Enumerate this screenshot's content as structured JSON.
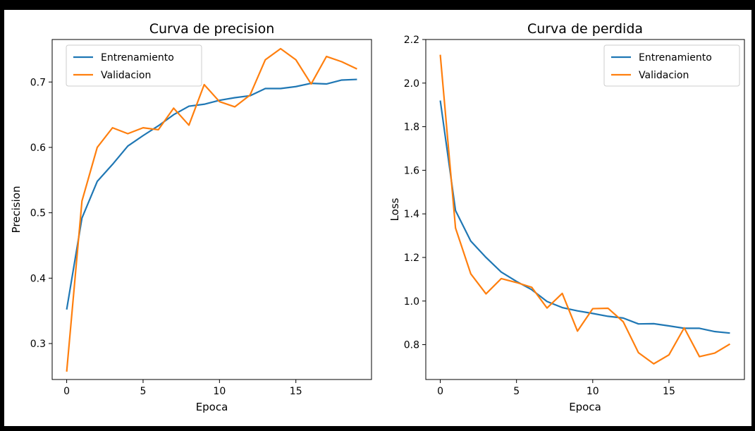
{
  "chart_data": [
    {
      "type": "line",
      "title": "Curva de precision",
      "xlabel": "Epoca",
      "ylabel": "Precision",
      "xlim": [
        -0.95,
        19.95
      ],
      "ylim": [
        0.245,
        0.765
      ],
      "xticks": [
        0,
        5,
        10,
        15
      ],
      "yticks": [
        0.3,
        0.4,
        0.5,
        0.6,
        0.7
      ],
      "legend_position": "top-left",
      "x": [
        0,
        1,
        2,
        3,
        4,
        5,
        6,
        7,
        8,
        9,
        10,
        11,
        12,
        13,
        14,
        15,
        16,
        17,
        18,
        19
      ],
      "series": [
        {
          "name": "Entrenamiento",
          "color": "#1f77b4",
          "values": [
            0.352,
            0.492,
            0.548,
            0.574,
            0.602,
            0.618,
            0.633,
            0.65,
            0.663,
            0.666,
            0.672,
            0.676,
            0.679,
            0.69,
            0.69,
            0.693,
            0.698,
            0.697,
            0.703,
            0.704
          ]
        },
        {
          "name": "Validacion",
          "color": "#ff7f0e",
          "values": [
            0.257,
            0.518,
            0.6,
            0.63,
            0.621,
            0.63,
            0.627,
            0.66,
            0.634,
            0.696,
            0.67,
            0.662,
            0.68,
            0.734,
            0.751,
            0.734,
            0.697,
            0.739,
            0.731,
            0.72
          ]
        }
      ]
    },
    {
      "type": "line",
      "title": "Curva de perdida",
      "xlabel": "Epoca",
      "ylabel": "Loss",
      "xlim": [
        -0.95,
        19.95
      ],
      "ylim": [
        0.64,
        2.2
      ],
      "xticks": [
        0,
        5,
        10,
        15
      ],
      "yticks": [
        0.8,
        1.0,
        1.2,
        1.4,
        1.6,
        1.8,
        2.0,
        2.2
      ],
      "legend_position": "top-right",
      "x": [
        0,
        1,
        2,
        3,
        4,
        5,
        6,
        7,
        8,
        9,
        10,
        11,
        12,
        13,
        14,
        15,
        16,
        17,
        18,
        19
      ],
      "series": [
        {
          "name": "Entrenamiento",
          "color": "#1f77b4",
          "values": [
            1.92,
            1.415,
            1.275,
            1.2,
            1.133,
            1.09,
            1.052,
            0.998,
            0.97,
            0.955,
            0.943,
            0.93,
            0.922,
            0.895,
            0.896,
            0.886,
            0.875,
            0.875,
            0.86,
            0.853
          ]
        },
        {
          "name": "Validacion",
          "color": "#ff7f0e",
          "values": [
            2.13,
            1.335,
            1.125,
            1.033,
            1.103,
            1.085,
            1.063,
            0.968,
            1.035,
            0.862,
            0.965,
            0.967,
            0.905,
            0.763,
            0.712,
            0.753,
            0.877,
            0.745,
            0.761,
            0.803
          ]
        }
      ]
    }
  ]
}
